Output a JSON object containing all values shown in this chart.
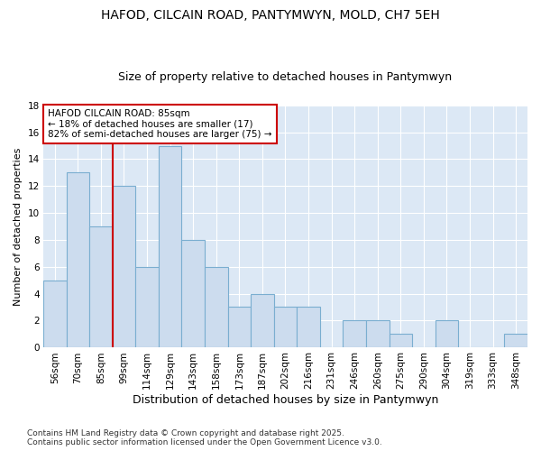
{
  "title": "HAFOD, CILCAIN ROAD, PANTYMWYN, MOLD, CH7 5EH",
  "subtitle": "Size of property relative to detached houses in Pantymwyn",
  "xlabel": "Distribution of detached houses by size in Pantymwyn",
  "ylabel": "Number of detached properties",
  "categories": [
    "56sqm",
    "70sqm",
    "85sqm",
    "99sqm",
    "114sqm",
    "129sqm",
    "143sqm",
    "158sqm",
    "173sqm",
    "187sqm",
    "202sqm",
    "216sqm",
    "231sqm",
    "246sqm",
    "260sqm",
    "275sqm",
    "290sqm",
    "304sqm",
    "319sqm",
    "333sqm",
    "348sqm"
  ],
  "values": [
    5,
    13,
    9,
    12,
    6,
    15,
    8,
    6,
    3,
    4,
    3,
    3,
    0,
    2,
    2,
    1,
    0,
    2,
    0,
    0,
    1
  ],
  "bar_color": "#ccdcee",
  "bar_edge_color": "#7aaed0",
  "highlight_index": 2,
  "highlight_line_color": "#cc0000",
  "annotation_text": "HAFOD CILCAIN ROAD: 85sqm\n← 18% of detached houses are smaller (17)\n82% of semi-detached houses are larger (75) →",
  "annotation_box_facecolor": "#ffffff",
  "annotation_box_edgecolor": "#cc0000",
  "ylim": [
    0,
    18
  ],
  "yticks": [
    0,
    2,
    4,
    6,
    8,
    10,
    12,
    14,
    16,
    18
  ],
  "figure_bg_color": "#ffffff",
  "axes_bg_color": "#dce8f5",
  "grid_color": "#ffffff",
  "title_fontsize": 10,
  "subtitle_fontsize": 9,
  "xlabel_fontsize": 9,
  "ylabel_fontsize": 8,
  "tick_fontsize": 7.5,
  "annotation_fontsize": 7.5,
  "footer_fontsize": 6.5,
  "footer": "Contains HM Land Registry data © Crown copyright and database right 2025.\nContains public sector information licensed under the Open Government Licence v3.0."
}
